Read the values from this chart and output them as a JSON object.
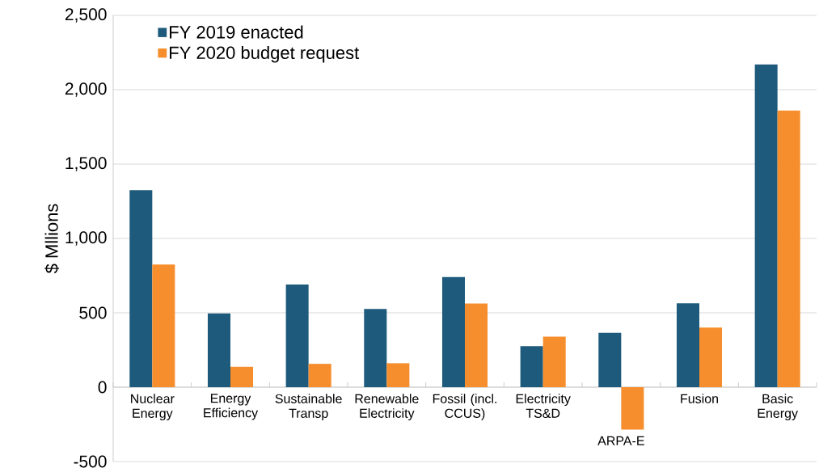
{
  "chart_data": {
    "type": "bar",
    "ylabel": "$ Mllions",
    "categories": [
      "Nuclear Energy",
      "Energy Efficiency",
      "Sustainable Transp",
      "Renewable Electricity",
      "Fossil (incl. CCUS)",
      "Electricity TS&D",
      "ARPA-E",
      "Fusion",
      "Basic Energy"
    ],
    "series": [
      {
        "name": "FY 2019 enacted",
        "color": "#1d5a7b",
        "values": [
          1325,
          496,
          690,
          526,
          740,
          276,
          365,
          564,
          2170
        ]
      },
      {
        "name": "FY 2020 budget request",
        "color": "#f68e2d",
        "values": [
          825,
          137,
          157,
          161,
          562,
          339,
          -286,
          401,
          1860
        ]
      }
    ],
    "ylim": [
      -500,
      2500
    ],
    "yticks": [
      {
        "value": -500,
        "label": "-500"
      },
      {
        "value": 0,
        "label": "0"
      },
      {
        "value": 500,
        "label": "500"
      },
      {
        "value": 1000,
        "label": "1,000"
      },
      {
        "value": 1500,
        "label": "1,500"
      },
      {
        "value": 2000,
        "label": "2,000"
      },
      {
        "value": 2500,
        "label": "2,500"
      }
    ],
    "grid": "y",
    "legend": "top left"
  }
}
